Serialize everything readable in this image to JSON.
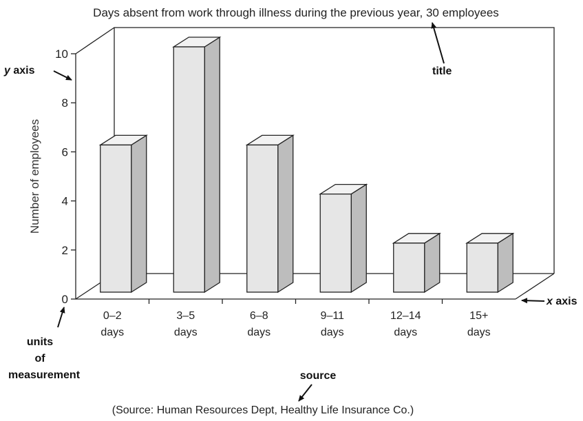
{
  "chart_data": {
    "type": "bar",
    "title": "Days absent from work through illness during the previous year, 30 employees",
    "ylabel": "Number of employees",
    "xlabel": "",
    "categories": [
      [
        "0–2",
        "days"
      ],
      [
        "3–5",
        "days"
      ],
      [
        "6–8",
        "days"
      ],
      [
        "9–11",
        "days"
      ],
      [
        "12–14",
        "days"
      ],
      [
        "15+",
        "days"
      ]
    ],
    "values": [
      6,
      10,
      6,
      4,
      2,
      2
    ],
    "ylim": [
      0,
      10
    ],
    "yticks": [
      "0",
      "2",
      "4",
      "6",
      "8",
      "10"
    ],
    "style": "3d",
    "grid": false,
    "source": "(Source: Human Resources Dept, Healthy Life Insurance Co.)"
  },
  "annotations": {
    "title": "title",
    "y_axis_italic": "y",
    "y_axis_rest": " axis",
    "x_axis_italic": "x",
    "x_axis_rest": " axis",
    "units": [
      "units",
      "of",
      "measurement"
    ],
    "source": "source"
  },
  "colors": {
    "bar_front": "#e6e6e6",
    "bar_top": "#f2f2f2",
    "bar_side": "#bdbdbd",
    "line": "#222222"
  }
}
